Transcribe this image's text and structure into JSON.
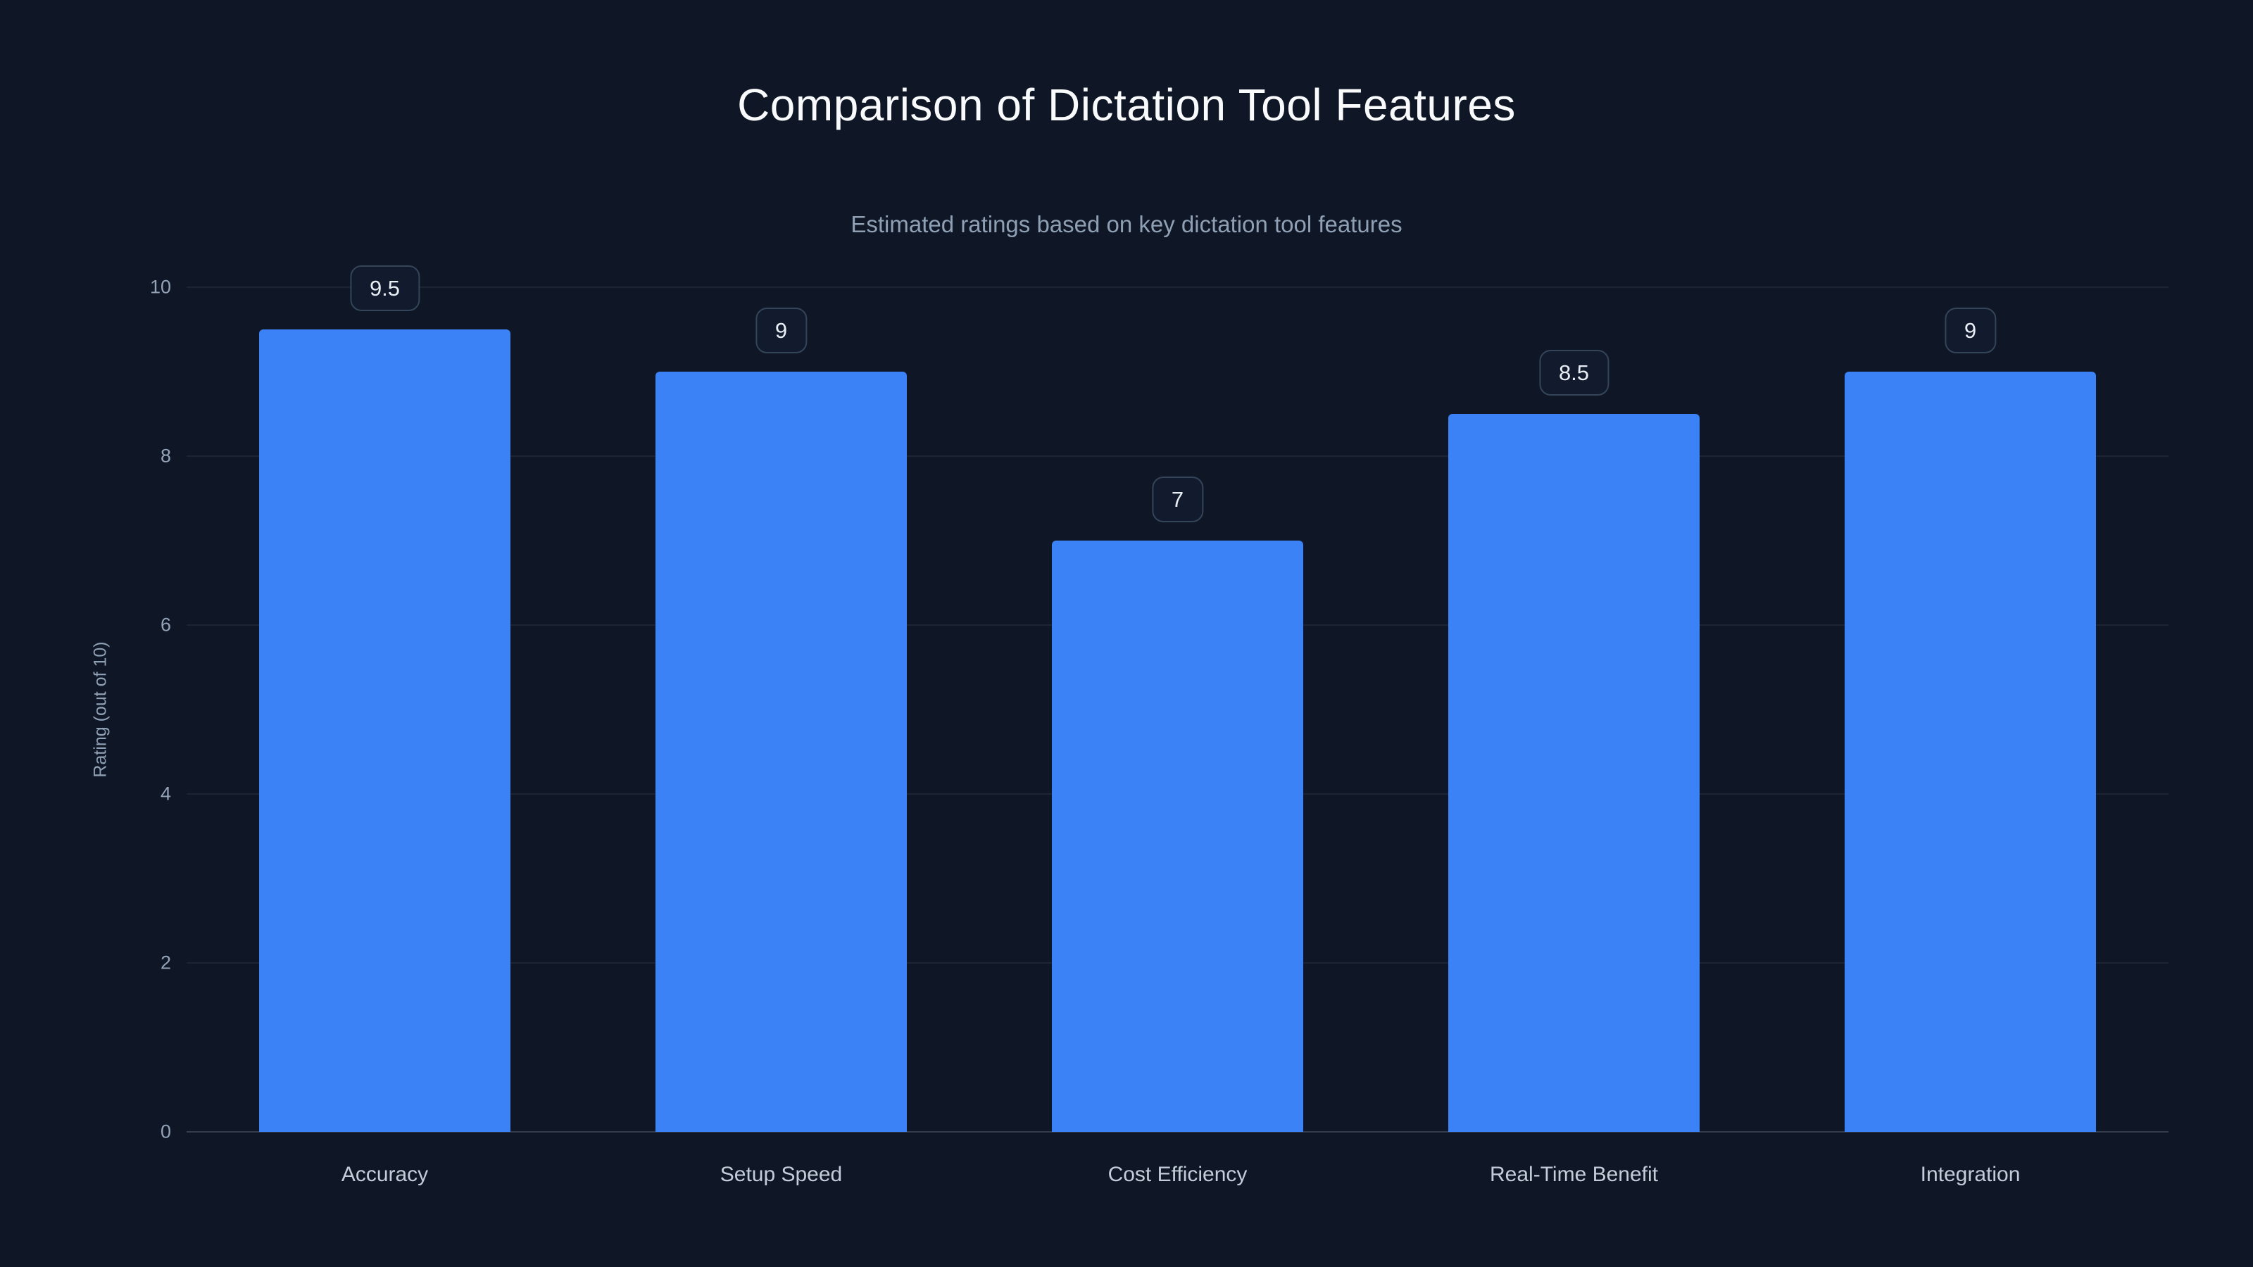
{
  "chart_data": {
    "type": "bar",
    "title": "Comparison of Dictation Tool Features",
    "subtitle": "Estimated ratings based on key dictation tool features",
    "ylabel": "Rating (out of 10)",
    "xlabel": "",
    "categories": [
      "Accuracy",
      "Setup Speed",
      "Cost Efficiency",
      "Real-Time Benefit",
      "Integration"
    ],
    "values": [
      9.5,
      9,
      7,
      8.5,
      9
    ],
    "value_labels": [
      "9.5",
      "9",
      "7",
      "8.5",
      "9"
    ],
    "ylim": [
      0,
      10
    ],
    "yticks": [
      0,
      2,
      4,
      6,
      8,
      10
    ],
    "grid": "horizontal",
    "legend_position": "none",
    "colors": {
      "background": "#0f1726",
      "bar": "#3b82f6",
      "title_text": "#f8fafc",
      "subtitle_text": "#8fa0b5",
      "axis_text": "#94a3b8",
      "badge_border": "#344459"
    }
  }
}
